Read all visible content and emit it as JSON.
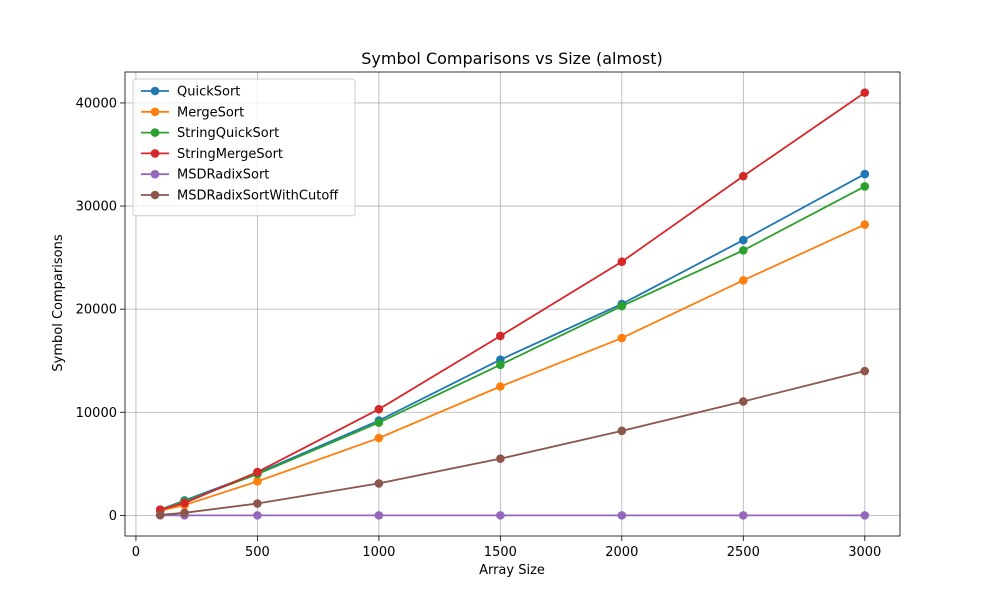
{
  "chart_data": {
    "type": "line",
    "title": "Symbol Comparisons vs Size (almost)",
    "xlabel": "Array Size",
    "ylabel": "Symbol Comparisons",
    "xlim": [
      -45,
      3145
    ],
    "ylim": [
      -2000,
      43000
    ],
    "xticks": [
      0,
      500,
      1000,
      1500,
      2000,
      2500,
      3000
    ],
    "yticks": [
      0,
      10000,
      20000,
      30000,
      40000
    ],
    "grid": true,
    "legend_position": "top-left",
    "x": [
      100,
      200,
      500,
      1000,
      1500,
      2000,
      2500,
      3000
    ],
    "series": [
      {
        "name": "QuickSort",
        "color": "#1f77b4",
        "values": [
          550,
          1450,
          4100,
          9200,
          15100,
          20500,
          26700,
          33100
        ]
      },
      {
        "name": "MergeSort",
        "color": "#ff7f0e",
        "values": [
          450,
          1000,
          3300,
          7500,
          12500,
          17200,
          22800,
          28200
        ]
      },
      {
        "name": "StringQuickSort",
        "color": "#2ca02c",
        "values": [
          520,
          1350,
          4000,
          9000,
          14600,
          20300,
          25700,
          31900
        ]
      },
      {
        "name": "StringMergeSort",
        "color": "#d62728",
        "values": [
          550,
          1200,
          4200,
          10300,
          17400,
          24600,
          32900,
          41000
        ]
      },
      {
        "name": "MSDRadixSort",
        "color": "#9467bd",
        "values": [
          0,
          0,
          0,
          0,
          0,
          0,
          0,
          0
        ]
      },
      {
        "name": "MSDRadixSortWithCutoff",
        "color": "#8c564b",
        "values": [
          50,
          250,
          1150,
          3100,
          5500,
          8200,
          11050,
          14000
        ]
      }
    ]
  }
}
